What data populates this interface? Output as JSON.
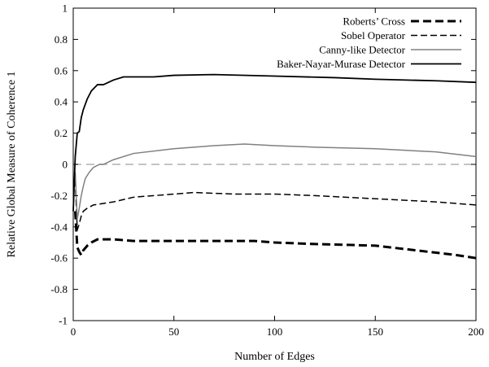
{
  "chart_data": {
    "type": "line",
    "title": "",
    "xlabel": "Number of Edges",
    "ylabel": "Relative Global Measure of Coherence 1",
    "xlim": [
      0,
      200
    ],
    "ylim": [
      -1,
      1
    ],
    "xticks": [
      0,
      50,
      100,
      150,
      200
    ],
    "yticks": [
      -1,
      -0.8,
      -0.6,
      -0.4,
      -0.2,
      0,
      0.2,
      0.4,
      0.6,
      0.8,
      1
    ],
    "xtick_labels": [
      "0",
      "50",
      "100",
      "150",
      "200"
    ],
    "ytick_labels": [
      "-1",
      "-0.8",
      "-0.6",
      "-0.4",
      "-0.2",
      "0",
      "0.2",
      "0.4",
      "0.6",
      "0.8",
      "1"
    ],
    "grid": false,
    "legend_position": "top-right",
    "reference_line": {
      "y": 0,
      "color": "#b0b0b0",
      "style": "dashed"
    },
    "series": [
      {
        "name": "Roberts’ Cross",
        "color": "#000000",
        "style": "bold-dashed",
        "x": [
          1,
          2,
          3,
          4,
          5,
          7,
          9,
          12,
          15,
          20,
          30,
          50,
          70,
          90,
          100,
          120,
          150,
          170,
          190,
          200
        ],
        "y": [
          -0.3,
          -0.53,
          -0.56,
          -0.58,
          -0.55,
          -0.52,
          -0.5,
          -0.48,
          -0.48,
          -0.48,
          -0.49,
          -0.49,
          -0.49,
          -0.49,
          -0.5,
          -0.51,
          -0.52,
          -0.55,
          -0.58,
          -0.6
        ]
      },
      {
        "name": "Sobel Operator",
        "color": "#000000",
        "style": "dash-dot",
        "x": [
          1,
          2,
          3,
          4,
          5,
          7,
          10,
          15,
          20,
          30,
          50,
          60,
          80,
          100,
          120,
          150,
          180,
          200
        ],
        "y": [
          -0.1,
          -0.42,
          -0.38,
          -0.33,
          -0.3,
          -0.28,
          -0.26,
          -0.25,
          -0.24,
          -0.21,
          -0.19,
          -0.18,
          -0.19,
          -0.19,
          -0.2,
          -0.22,
          -0.24,
          -0.26
        ]
      },
      {
        "name": "Canny-like Detector",
        "color": "#808080",
        "style": "solid",
        "x": [
          1,
          2,
          3,
          4,
          5,
          6,
          8,
          10,
          13,
          15,
          20,
          30,
          50,
          70,
          85,
          100,
          120,
          150,
          180,
          200
        ],
        "y": [
          -0.05,
          -0.35,
          -0.28,
          -0.2,
          -0.14,
          -0.09,
          -0.05,
          -0.02,
          0.0,
          0.0,
          0.03,
          0.07,
          0.1,
          0.12,
          0.13,
          0.12,
          0.11,
          0.1,
          0.08,
          0.05
        ]
      },
      {
        "name": "Baker-Nayar-Murase Detector",
        "color": "#000000",
        "style": "solid",
        "x": [
          0,
          1,
          2,
          3,
          4,
          5,
          7,
          9,
          12,
          15,
          20,
          25,
          30,
          40,
          50,
          70,
          100,
          130,
          150,
          180,
          200
        ],
        "y": [
          -0.3,
          0.05,
          0.2,
          0.21,
          0.3,
          0.35,
          0.42,
          0.47,
          0.51,
          0.51,
          0.54,
          0.56,
          0.56,
          0.56,
          0.57,
          0.575,
          0.565,
          0.555,
          0.545,
          0.535,
          0.525
        ]
      }
    ]
  }
}
